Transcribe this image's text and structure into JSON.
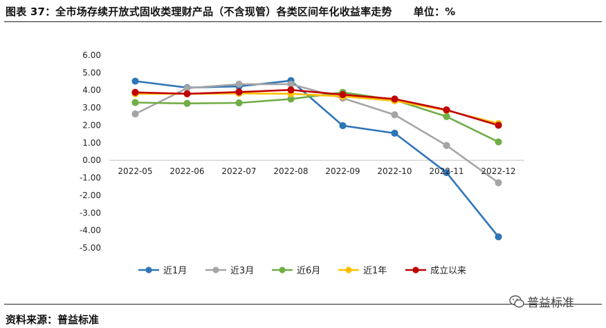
{
  "figure": {
    "title": "图表 37：全市场存续开放式固收类理财产品（不含现管）各类区间年化收益率走势",
    "unit_label": "单位：%",
    "source": "资料来源：普益标准",
    "watermark": "普益标准"
  },
  "chart_data": {
    "type": "line",
    "title": "全市场存续开放式固收类理财产品（不含现管）各类区间年化收益率走势",
    "xlabel": "",
    "ylabel": "单位：%",
    "ylim": [
      -5,
      6
    ],
    "ytick_step": 1,
    "ytick_labels": [
      "6.00",
      "5.00",
      "4.00",
      "3.00",
      "2.00",
      "1.00",
      "0.00",
      "-1.00",
      "-2.00",
      "-3.00",
      "-4.00",
      "-5.00"
    ],
    "categories": [
      "2022-05",
      "2022-06",
      "2022-07",
      "2022-08",
      "2022-09",
      "2022-10",
      "2022-11",
      "2022-12"
    ],
    "legend_position": "bottom",
    "series": [
      {
        "name": "近1月",
        "color": "#2E75B6",
        "values": [
          4.52,
          4.15,
          4.22,
          4.55,
          1.98,
          1.55,
          -0.7,
          -4.37
        ]
      },
      {
        "name": "近3月",
        "color": "#A5A5A5",
        "values": [
          2.65,
          4.12,
          4.35,
          4.35,
          3.55,
          2.6,
          0.85,
          -1.28
        ]
      },
      {
        "name": "近6月",
        "color": "#70AD47",
        "values": [
          3.3,
          3.25,
          3.28,
          3.5,
          3.88,
          3.45,
          2.5,
          1.05
        ]
      },
      {
        "name": "近1年",
        "color": "#FFC000",
        "values": [
          3.8,
          3.8,
          3.82,
          3.8,
          3.65,
          3.4,
          2.85,
          2.1
        ]
      },
      {
        "name": "成立以来",
        "color": "#C00000",
        "values": [
          3.88,
          3.8,
          3.9,
          4.02,
          3.75,
          3.5,
          2.88,
          2.0
        ]
      }
    ]
  }
}
